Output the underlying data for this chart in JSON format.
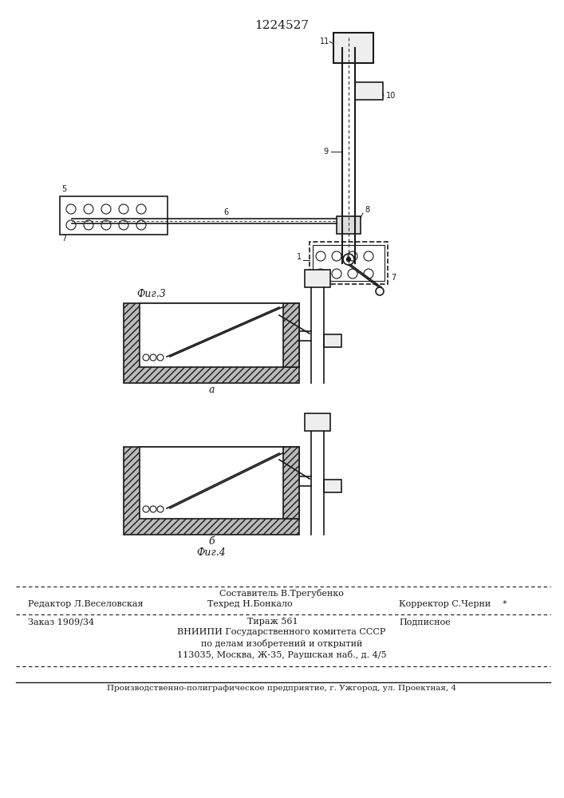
{
  "title": "1224527",
  "background_color": "#ffffff",
  "fig3_label": "Фиг.3",
  "fig4_label": "Фиг.4",
  "footer_sostavitel": "Составитель В.Трегубенко",
  "footer_redaktor": "Редактор Л.Веселовская",
  "footer_tekhred": "Техред Н.Бонкало",
  "footer_korrektor": "Корректор С.Черни",
  "footer_zakaz": "Заказ 1909/34",
  "footer_tirazh": "Тираж 561",
  "footer_podpisnoe": "Подписное",
  "footer_vnipi": "ВНИИПИ Государственного комитета СССР",
  "footer_po_delam": "по делам изобретений и открытий",
  "footer_address": "113035, Москва, Ж-35, Раушская наб., д. 4/5",
  "footer_proizv": "Производственно-полиграфическое предприятие, г. Ужгород, ул. Проектная, 4"
}
